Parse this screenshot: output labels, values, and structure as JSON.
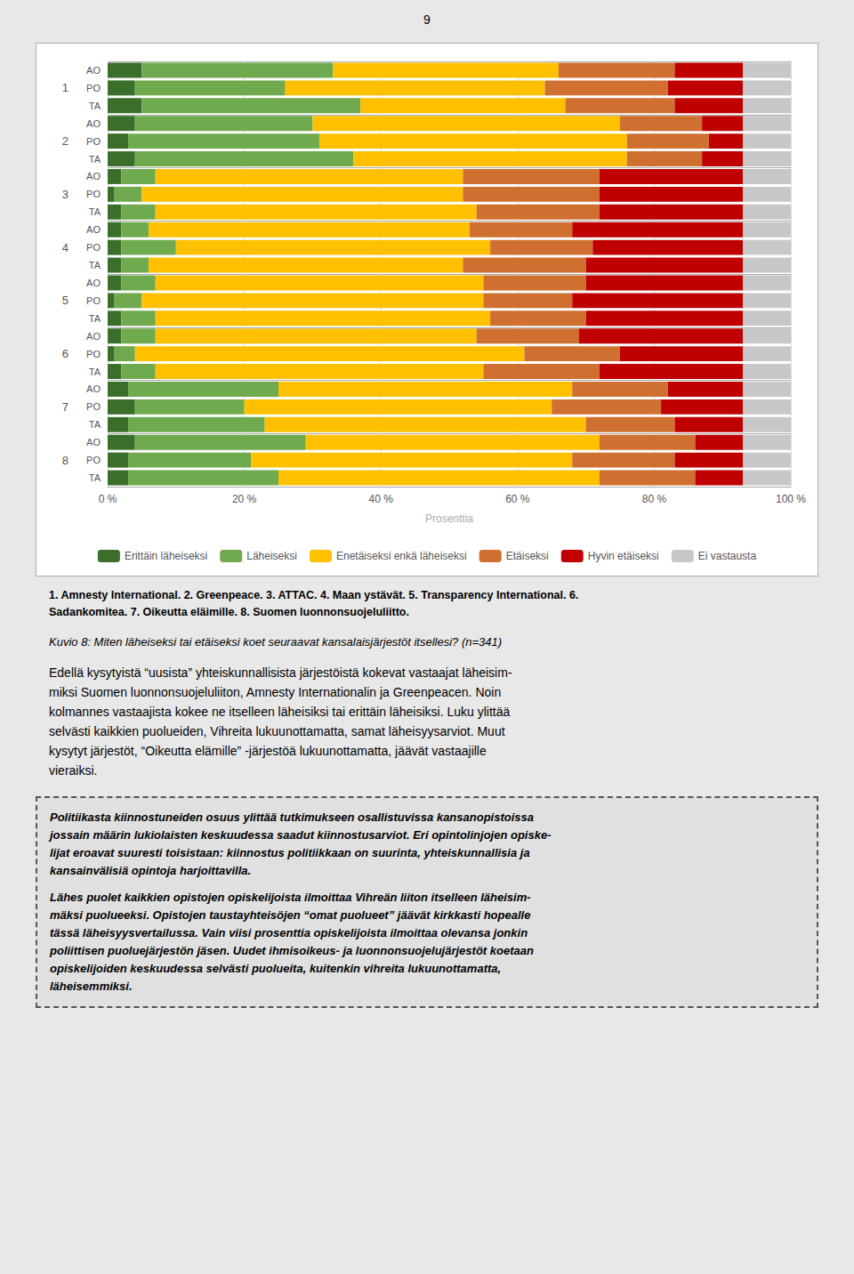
{
  "chart_data": {
    "type": "bar",
    "orientation": "horizontal",
    "stacked": true,
    "page_number": "9",
    "xlabel": "Prosenttia",
    "groups": [
      "1",
      "2",
      "3",
      "4",
      "5",
      "6",
      "7",
      "8"
    ],
    "categories": [
      "AO",
      "PO",
      "TA",
      "AO",
      "PO",
      "TA",
      "AO",
      "PO",
      "TA",
      "AO",
      "PO",
      "TA",
      "AO",
      "PO",
      "TA",
      "AO",
      "PO",
      "TA",
      "AO",
      "PO",
      "TA",
      "AO",
      "PO",
      "TA"
    ],
    "series": [
      {
        "name": "Erittäin läheiseksi",
        "color": "#3a6e2a",
        "values": [
          5,
          4,
          5,
          4,
          3,
          4,
          2,
          1,
          2,
          2,
          2,
          2,
          2,
          1,
          2,
          2,
          1,
          2,
          3,
          4,
          3,
          4,
          3,
          3
        ]
      },
      {
        "name": "Läheiseksi",
        "color": "#6faa4e",
        "values": [
          28,
          22,
          32,
          26,
          28,
          32,
          5,
          4,
          5,
          4,
          8,
          4,
          5,
          4,
          5,
          5,
          3,
          5,
          22,
          16,
          20,
          25,
          18,
          22
        ]
      },
      {
        "name": "Enetäiseksi enkä läheiseksi",
        "color": "#ffc000",
        "values": [
          33,
          38,
          30,
          45,
          45,
          40,
          45,
          47,
          47,
          47,
          46,
          46,
          48,
          50,
          49,
          47,
          57,
          48,
          43,
          45,
          47,
          43,
          47,
          47
        ]
      },
      {
        "name": "Etäiseksi",
        "color": "#d07030",
        "values": [
          17,
          18,
          16,
          12,
          12,
          11,
          20,
          20,
          18,
          15,
          15,
          18,
          15,
          13,
          14,
          15,
          14,
          17,
          14,
          16,
          13,
          14,
          15,
          14
        ]
      },
      {
        "name": "Hyvin etäiseksi",
        "color": "#c00000",
        "values": [
          10,
          11,
          10,
          6,
          5,
          6,
          21,
          21,
          21,
          25,
          22,
          23,
          23,
          25,
          23,
          24,
          18,
          21,
          11,
          12,
          10,
          7,
          10,
          7
        ]
      },
      {
        "name": "Ei vastausta",
        "color": "#c8c8c8",
        "values": [
          7,
          7,
          7,
          7,
          7,
          7,
          7,
          7,
          7,
          7,
          7,
          7,
          7,
          7,
          7,
          7,
          7,
          7,
          7,
          7,
          7,
          7,
          7,
          7
        ]
      }
    ],
    "xlim": [
      0,
      100
    ],
    "xticks": [
      {
        "value": 0,
        "label": "0 %"
      },
      {
        "value": 20,
        "label": "20 %"
      },
      {
        "value": 40,
        "label": "40 %"
      },
      {
        "value": 60,
        "label": "60 %"
      },
      {
        "value": 80,
        "label": "80 %"
      },
      {
        "value": 100,
        "label": "100 %"
      }
    ],
    "grid": true,
    "legend": "bottom",
    "caption_lines": [
      "1. Amnesty International.  2. Greenpeace.  3. ATTAC.  4. Maan ystävät.  5. Transparency International.  6.",
      "Sadankomitea.  7. Oikeutta eläimille.  8. Suomen luonnonsuojeluliitto."
    ],
    "description": "Kuvio 8: Miten läheiseksi tai etäiseksi koet seuraavat kansalaisjärjestöt itsellesi? (n=341)",
    "body_text": [
      "Edellä kysytyistä “uusista” yhteiskunnallisista järjestöistä kokevat vastaajat läheisim-",
      "miksi Suomen luonnonsuojeluliiton, Amnesty Internationalin ja Greenpeacen. Noin",
      "kolmannes vastaajista kokee ne itselleen läheisiksi tai erittäin läheisiksi. Luku ylittää",
      "selvästi kaikkien puolueiden, Vihreita lukuunottamatta, samat läheisyysarviot. Muut",
      "kysytyt järjestöt, “Oikeutta elämille” -järjestöä lukuunottamatta, jäävät vastaajille",
      "vieraiksi."
    ],
    "box_text": [
      [
        "Politiikasta kiinnostuneiden osuus ylittää tutkimukseen osallistuvissa kansanopistoissa",
        "jossain määrin lukiolaisten keskuudessa saadut kiinnostusarviot. Eri opintolinjojen opiske-",
        "lijat eroavat suuresti toisistaan: kiinnostus politiikkaan on suurinta, yhteiskunnallisia ja",
        "kansainvälisiä opintoja harjoittavilla."
      ],
      [
        "Lähes puolet kaikkien opistojen opiskelijoista ilmoittaa Vihreän liiton itselleen läheisim-",
        "mäksi puolueeksi. Opistojen taustayhteisöjen “omat puolueet” jäävät kirkkasti hopealle",
        "tässä läheisyysvertailussa. Vain viisi prosenttia opiskelijoista ilmoittaa olevansa jonkin",
        "poliittisen puoluejärjestön jäsen. Uudet ihmisoikeus- ja luonnonsuojelujärjestöt koetaan",
        "opiskelijoiden keskuudessa selvästi puolueita, kuitenkin vihreita lukuunottamatta,",
        "läheisemmiksi."
      ]
    ]
  }
}
